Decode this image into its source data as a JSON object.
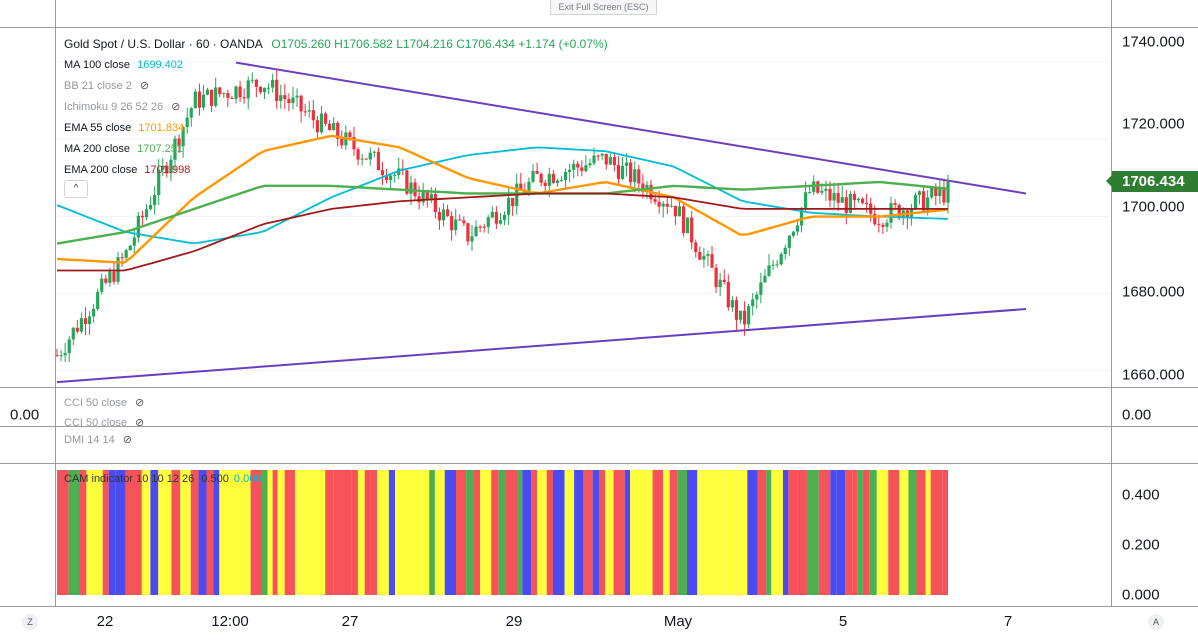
{
  "toolbar": {
    "exit_label": "Exit Full Screen (ESC)"
  },
  "legend": {
    "symbol": "Gold Spot / U.S. Dollar · 60 · OANDA",
    "ohlc": "O1705.260  H1706.582  L1704.216  C1706.434  +1.174 (+0.07%)",
    "rows": [
      {
        "label": "MA 100 close",
        "value": "1699.402",
        "color": "#00bcd4"
      },
      {
        "label": "BB 21 close 2",
        "value": "",
        "color": "#9598a1"
      },
      {
        "label": "Ichimoku 9 26 52 26",
        "value": "",
        "color": "#9598a1"
      },
      {
        "label": "EMA 55 close",
        "value": "1701.834",
        "color": "#ff9800"
      },
      {
        "label": "MA 200 close",
        "value": "1707.251",
        "color": "#4caf50"
      },
      {
        "label": "EMA 200 close",
        "value": "1701.998",
        "color": "#b71c1c"
      }
    ],
    "collapse_glyph": "^"
  },
  "price_axis": {
    "ticks": [
      "1740.000",
      "1720.000",
      "1700.000",
      "1680.000",
      "1660.000"
    ],
    "last_price": "1706.434",
    "last_price_color": "#2e7d32"
  },
  "time_axis": {
    "ticks": [
      "22",
      "12:00",
      "27",
      "29",
      "May",
      "5",
      "7"
    ]
  },
  "cci_pane": {
    "labels": [
      "CCI 50 close",
      "CCI 50 close"
    ],
    "axis_value": "0.00",
    "left_value": "0.00"
  },
  "dmi_pane": {
    "label": "DMI 14 14"
  },
  "cam_pane": {
    "label": "CAM indicator 10 10 12 26",
    "value1": "0.500",
    "value2": "0.000",
    "ticks": [
      "0.400",
      "0.200",
      "0.000"
    ]
  },
  "corners": {
    "left": "Z",
    "right": "A"
  },
  "colors": {
    "up": "#26a65b",
    "down": "#ef2f3c",
    "trendline": "#6a3fbf",
    "cam_red": "#f5525a",
    "cam_blue": "#4b4bef",
    "cam_yellow": "#ffff3b",
    "cam_green": "#4caf50"
  },
  "chart_data": {
    "type": "line",
    "title": "Gold Spot / U.S. Dollar · 60 · OANDA",
    "xlabel": "",
    "ylabel": "",
    "ylim": [
      1656,
      1749
    ],
    "x": [
      "21 Apr",
      "22 Apr",
      "22 Apr 12:00",
      "23 Apr",
      "24 Apr",
      "27 Apr",
      "28 Apr",
      "29 Apr",
      "30 Apr",
      "1 May",
      "4 May",
      "5 May",
      "6 May",
      "6 May (last)"
    ],
    "series": [
      {
        "name": "Gold Spot / U.S. Dollar",
        "values": [
          1664,
          1690,
          1730,
          1735,
          1722,
          1710,
          1695,
          1710,
          1715,
          1703,
          1672,
          1707,
          1700,
          1706.434
        ]
      },
      {
        "name": "MA 100 close",
        "values": [
          1703,
          1696,
          1693,
          1696,
          1705,
          1712,
          1716,
          1718,
          1717,
          1713,
          1704,
          1701,
          1700,
          1699.402
        ]
      },
      {
        "name": "EMA 55 close",
        "values": [
          1689,
          1688,
          1705,
          1717,
          1721,
          1718,
          1710,
          1706,
          1709,
          1705,
          1695,
          1700,
          1700,
          1701.834
        ]
      },
      {
        "name": "MA 200 close",
        "values": [
          1693,
          1696,
          1702,
          1708,
          1708,
          1707,
          1706,
          1706,
          1706,
          1708,
          1707,
          1708,
          1709,
          1707.251
        ]
      },
      {
        "name": "EMA 200 close",
        "values": [
          1686,
          1686,
          1691,
          1698,
          1702,
          1704,
          1705,
          1706,
          1706,
          1705,
          1702,
          1702,
          1702,
          1701.998
        ]
      }
    ],
    "trendlines": [
      {
        "from": [
          "22 Apr 12:00",
          1740
        ],
        "to": [
          "7 May",
          1706
        ]
      },
      {
        "from": [
          "21 Apr",
          1657
        ],
        "to": [
          "7 May",
          1676
        ]
      }
    ],
    "cam_indicator": {
      "ylim": [
        0,
        0.5
      ],
      "colors_sequence": [
        "red",
        "blue",
        "yellow",
        "blue",
        "green",
        "red",
        "yellow",
        "red",
        "yellow",
        "red",
        "blue",
        "yellow",
        "red",
        "yellow",
        "red",
        "blue",
        "red",
        "yellow",
        "red",
        "blue",
        "yellow",
        "green",
        "red",
        "green"
      ]
    }
  }
}
